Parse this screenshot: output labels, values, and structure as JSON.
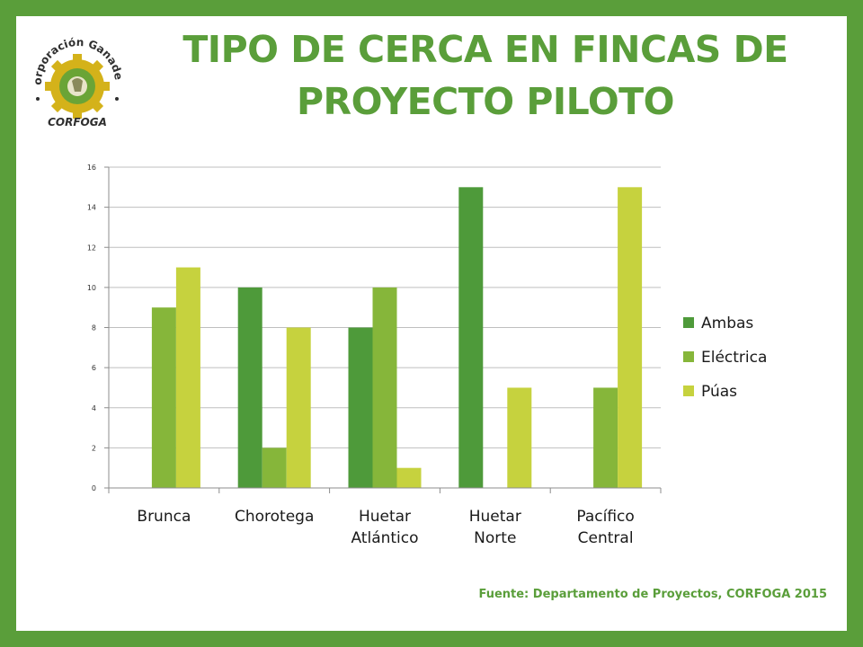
{
  "slide": {
    "title_line1": "TIPO DE CERCA EN FINCAS DE",
    "title_line2": "PROYECTO PILOTO",
    "source": "Fuente: Departamento de Proyectos, CORFOGA 2015",
    "frame_color": "#5a9e3a",
    "title_color": "#5a9e3a"
  },
  "logo": {
    "arc_text": "Corporación Ganadera",
    "bottom_text": "CORFOGA",
    "gear_color": "#d4b21a",
    "inner_color": "#6aa436"
  },
  "chart_data": {
    "type": "bar",
    "categories": [
      "Brunca",
      "Chorotega",
      "Huetar Atlántico",
      "Huetar Norte",
      "Pacífico Central"
    ],
    "category_lines": [
      [
        "Brunca"
      ],
      [
        "Chorotega"
      ],
      [
        "Huetar",
        "Atlántico"
      ],
      [
        "Huetar",
        "Norte"
      ],
      [
        "Pacífico",
        "Central"
      ]
    ],
    "series": [
      {
        "name": "Ambas",
        "values": [
          0,
          10,
          8,
          15,
          0
        ],
        "color": "#4e9a3a"
      },
      {
        "name": "Eléctrica",
        "values": [
          9,
          2,
          10,
          0,
          5
        ],
        "color": "#86b63a"
      },
      {
        "name": "Púas",
        "values": [
          11,
          8,
          1,
          5,
          15
        ],
        "color": "#c6d23e"
      }
    ],
    "y_ticks": [
      "0",
      "2",
      "4",
      "6",
      "8",
      "10",
      "12",
      "14",
      "16"
    ],
    "ylim": [
      0,
      16
    ],
    "grid": true,
    "legend": "right",
    "title": "",
    "xlabel": "",
    "ylabel": ""
  }
}
